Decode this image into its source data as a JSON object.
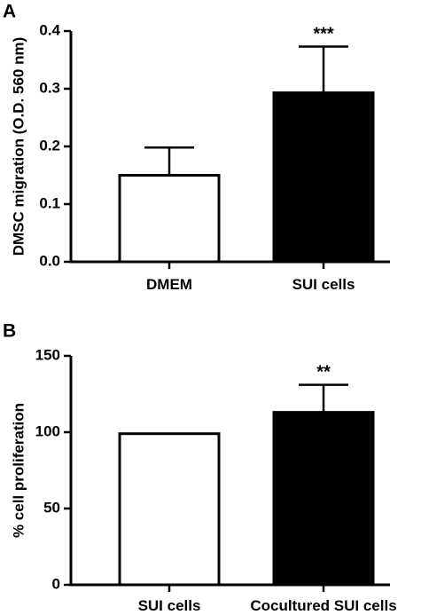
{
  "chart_data": [
    {
      "panel": "A",
      "type": "bar",
      "title": "",
      "xlabel": "",
      "ylabel": "DMSC migration (O.D. 560 nm)",
      "categories": [
        "DMEM",
        "SUI cells"
      ],
      "values": [
        0.15,
        0.293
      ],
      "errors": [
        0.048,
        0.08
      ],
      "significance": [
        "",
        "***"
      ],
      "bar_fill": [
        "#ffffff",
        "#000000"
      ],
      "ylim": [
        0,
        0.4
      ],
      "yticks": [
        0.0,
        0.1,
        0.2,
        0.3,
        0.4
      ],
      "ytick_labels": [
        "0.0",
        "0.1",
        "0.2",
        "0.3",
        "0.4"
      ],
      "grid": false,
      "legend": "none"
    },
    {
      "panel": "B",
      "type": "bar",
      "title": "",
      "xlabel": "",
      "ylabel": "% cell proliferation",
      "categories": [
        "SUI cells",
        "Cocultured SUI cells"
      ],
      "values": [
        99,
        113
      ],
      "errors": [
        0,
        18
      ],
      "significance": [
        "",
        "**"
      ],
      "bar_fill": [
        "#ffffff",
        "#000000"
      ],
      "ylim": [
        0,
        150
      ],
      "yticks": [
        0,
        50,
        100,
        150
      ],
      "ytick_labels": [
        "0",
        "50",
        "100",
        "150"
      ],
      "grid": false,
      "legend": "none"
    }
  ]
}
